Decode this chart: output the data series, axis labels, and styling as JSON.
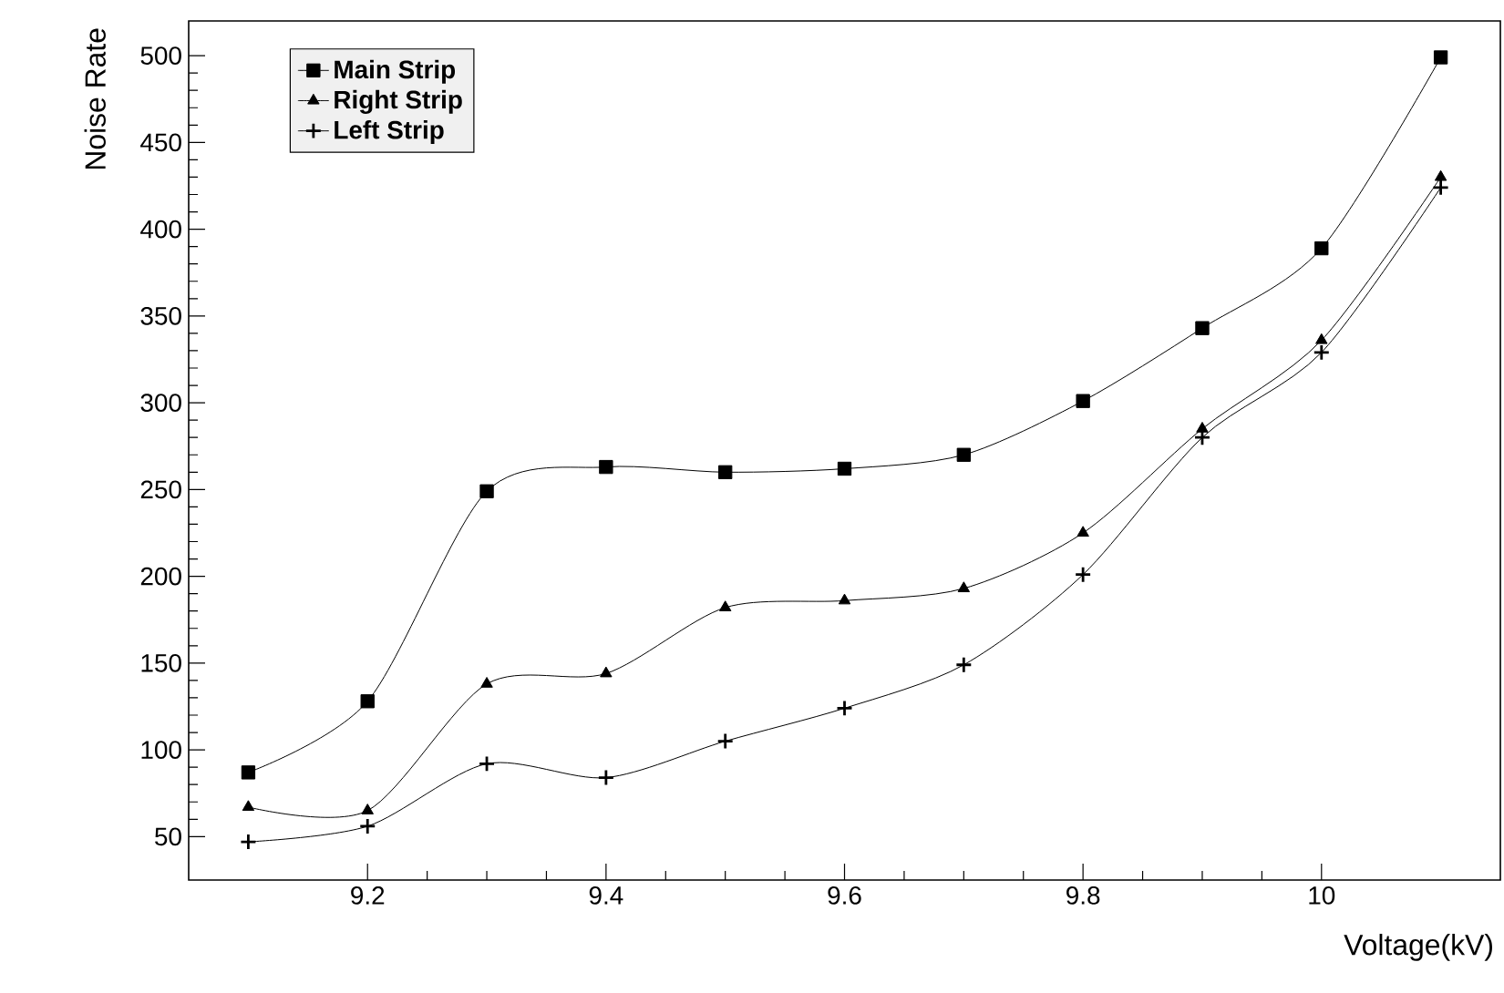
{
  "chart_data": {
    "type": "line",
    "xlabel": "Voltage(kV)",
    "ylabel": "Noise Rate",
    "x": [
      9.1,
      9.2,
      9.3,
      9.4,
      9.5,
      9.6,
      9.7,
      9.8,
      9.9,
      10,
      10.1
    ],
    "series": [
      {
        "name": "Main Strip",
        "color": "#000000",
        "marker": "square",
        "values": [
          87,
          128,
          249,
          263,
          260,
          262,
          270,
          301,
          343,
          389,
          499
        ]
      },
      {
        "name": "Right Strip",
        "color": "#000000",
        "marker": "triangle",
        "values": [
          67,
          65,
          138,
          144,
          182,
          186,
          193,
          225,
          285,
          336,
          430
        ]
      },
      {
        "name": "Left Strip",
        "color": "#000000",
        "marker": "cross",
        "values": [
          47,
          56,
          92,
          84,
          105,
          124,
          149,
          201,
          280,
          329,
          424
        ]
      }
    ],
    "xlim": [
      9.05,
      10.15
    ],
    "ylim": [
      25,
      520
    ],
    "xticks": [
      9.2,
      9.4,
      9.6,
      9.8,
      10
    ],
    "yticks": [
      50,
      100,
      150,
      200,
      250,
      300,
      350,
      400,
      450,
      500
    ],
    "grid": false,
    "legend": "top left",
    "line_style": "solid"
  }
}
